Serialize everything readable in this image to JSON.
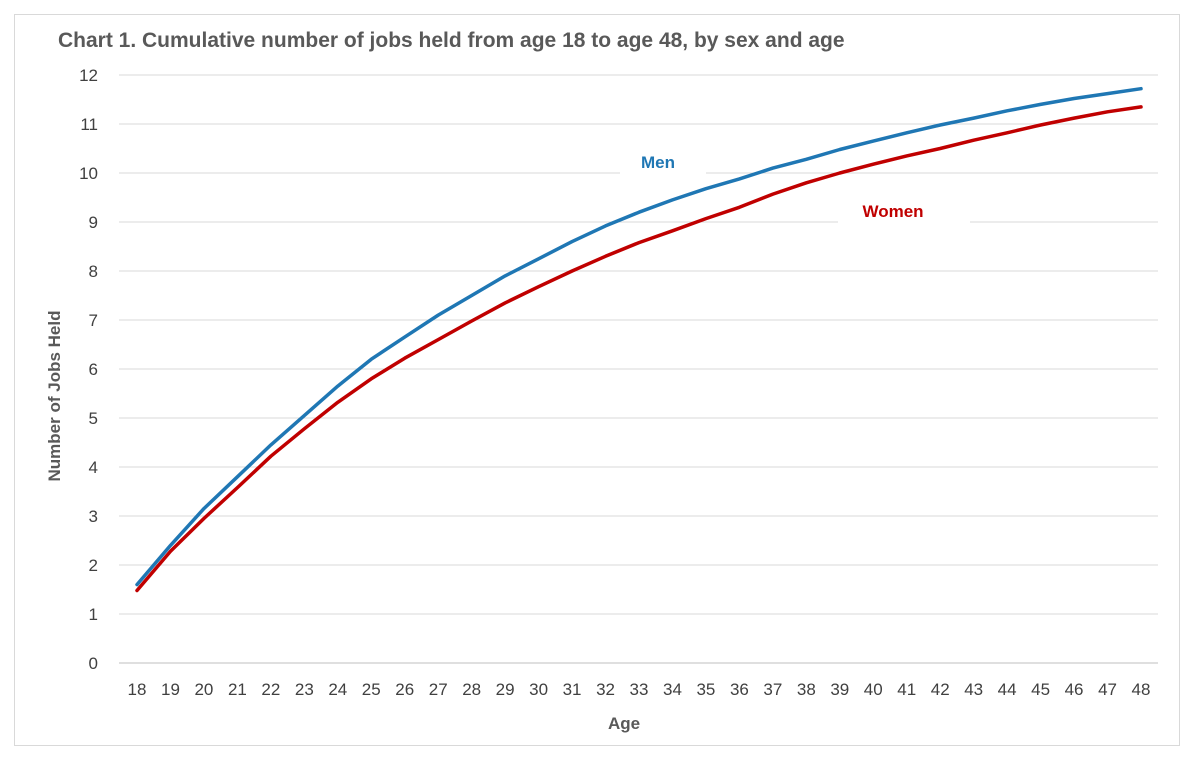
{
  "chart_data": {
    "type": "line",
    "title": "Chart 1. Cumulative number of jobs held from age 18 to age 48, by sex and age",
    "xlabel": "Age",
    "ylabel": "Number of Jobs Held",
    "ylim": [
      0,
      12
    ],
    "yticks": [
      "0",
      "1",
      "2",
      "3",
      "4",
      "5",
      "6",
      "7",
      "8",
      "9",
      "10",
      "11",
      "12"
    ],
    "grid": true,
    "legend": "inline labels",
    "x": [
      "18",
      "19",
      "20",
      "21",
      "22",
      "23",
      "24",
      "25",
      "26",
      "27",
      "28",
      "29",
      "30",
      "31",
      "32",
      "33",
      "34",
      "35",
      "36",
      "37",
      "38",
      "39",
      "40",
      "41",
      "42",
      "43",
      "44",
      "45",
      "46",
      "47",
      "48"
    ],
    "series": [
      {
        "name": "Men",
        "color": "#1f77b4",
        "values": [
          1.6,
          2.4,
          3.15,
          3.8,
          4.45,
          5.05,
          5.65,
          6.2,
          6.65,
          7.1,
          7.5,
          7.9,
          8.25,
          8.6,
          8.92,
          9.2,
          9.45,
          9.68,
          9.88,
          10.1,
          10.28,
          10.48,
          10.65,
          10.82,
          10.98,
          11.12,
          11.27,
          11.4,
          11.52,
          11.62,
          11.72
        ]
      },
      {
        "name": "Women",
        "color": "#c00000",
        "values": [
          1.48,
          2.28,
          2.95,
          3.58,
          4.22,
          4.78,
          5.32,
          5.8,
          6.22,
          6.6,
          6.98,
          7.35,
          7.68,
          8.0,
          8.3,
          8.58,
          8.82,
          9.07,
          9.3,
          9.57,
          9.8,
          10.0,
          10.18,
          10.35,
          10.5,
          10.67,
          10.82,
          10.98,
          11.12,
          11.25,
          11.35
        ]
      }
    ]
  }
}
